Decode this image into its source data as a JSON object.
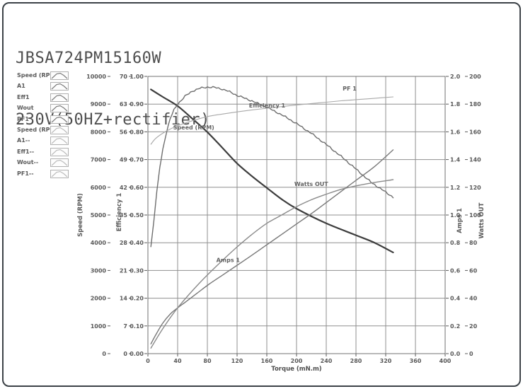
{
  "title": {
    "line1": "JBSA724PM15160W",
    "line2": "230V(50HZ+rectifier)"
  },
  "legend": {
    "items": [
      {
        "label": "Speed (RP",
        "group": "solid"
      },
      {
        "label": "A1",
        "group": "solid"
      },
      {
        "label": "Eff1",
        "group": "solid"
      },
      {
        "label": "Wout",
        "group": "solid"
      },
      {
        "label": "PF1",
        "group": "solid"
      },
      {
        "label": "Speed (RP",
        "group": "ref"
      },
      {
        "label": "A1--",
        "group": "ref"
      },
      {
        "label": "Eff1--",
        "group": "ref"
      },
      {
        "label": "Wout--",
        "group": "ref"
      },
      {
        "label": "PF1--",
        "group": "ref"
      }
    ]
  },
  "colors": {
    "frame": "#3c4247",
    "grid": "#8f8f8f",
    "plot_border": "#707070",
    "tick_text": "#5a5a5a",
    "speed": "#3d3d3d",
    "efficiency": "#6e6e6e",
    "pf": "#a8a8a8",
    "amps": "#787878",
    "watts": "#8a8a8a",
    "legend_solid": "#7d7d7d",
    "legend_ref": "#bdbdbd"
  },
  "chart_data": {
    "type": "line",
    "xlabel": "Torque (mN.m)",
    "x_range": [
      0,
      400
    ],
    "x_ticks": [
      0,
      40,
      80,
      120,
      160,
      200,
      240,
      280,
      320,
      360,
      400
    ],
    "grid": true,
    "axes": [
      {
        "id": "speed",
        "title": "Speed (RPM)",
        "side": "left",
        "range": [
          0,
          10000
        ],
        "ticks": [
          "10000",
          "9000",
          "8000",
          "7000",
          "6000",
          "5000",
          "4000",
          "3000",
          "2000",
          "1000",
          "0"
        ]
      },
      {
        "id": "eff",
        "title": "Efficiency 1",
        "side": "left",
        "range": [
          0,
          70
        ],
        "ticks": [
          "70",
          "63",
          "56",
          "49",
          "42",
          "35",
          "28",
          "21",
          "14",
          "7",
          "0"
        ]
      },
      {
        "id": "pf",
        "title": "",
        "side": "left",
        "range": [
          0,
          1
        ],
        "ticks": [
          "1.00",
          "0.90",
          "0.80",
          "0.70",
          "0.60",
          "0.50",
          "0.40",
          "0.30",
          "0.20",
          "0.10",
          "0.00"
        ]
      },
      {
        "id": "amps",
        "title": "Amps 1",
        "side": "right",
        "range": [
          0,
          2
        ],
        "ticks": [
          "2.0",
          "1.8",
          "1.6",
          "1.4",
          "1.2",
          "1.0",
          "0.8",
          "0.6",
          "0.4",
          "0.2",
          "0.0"
        ]
      },
      {
        "id": "watts",
        "title": "Watts OUT",
        "side": "right",
        "range": [
          0,
          200
        ],
        "ticks": [
          "200",
          "180",
          "160",
          "140",
          "120",
          "100",
          "80",
          "60",
          "40",
          "20",
          "0"
        ]
      }
    ],
    "series": [
      {
        "name": "Speed (RPM)",
        "axis": "speed",
        "color_key": "speed",
        "width": 2.2,
        "noisy": false,
        "points": [
          [
            4,
            9530
          ],
          [
            20,
            9260
          ],
          [
            40,
            8930
          ],
          [
            60,
            8470
          ],
          [
            80,
            7990
          ],
          [
            100,
            7430
          ],
          [
            120,
            6860
          ],
          [
            140,
            6400
          ],
          [
            160,
            5980
          ],
          [
            180,
            5570
          ],
          [
            200,
            5230
          ],
          [
            240,
            4700
          ],
          [
            280,
            4270
          ],
          [
            305,
            4000
          ],
          [
            330,
            3650
          ]
        ]
      },
      {
        "name": "Efficiency 1",
        "axis": "eff",
        "color_key": "efficiency",
        "width": 1.4,
        "noisy": true,
        "points": [
          [
            4,
            27
          ],
          [
            8,
            33.5
          ],
          [
            12,
            41
          ],
          [
            16,
            47
          ],
          [
            20,
            51.5
          ],
          [
            25,
            56
          ],
          [
            30,
            59.3
          ],
          [
            35,
            61.5
          ],
          [
            40,
            63
          ],
          [
            50,
            65
          ],
          [
            60,
            66.3
          ],
          [
            70,
            67
          ],
          [
            80,
            67.3
          ],
          [
            90,
            67.2
          ],
          [
            100,
            66.8
          ],
          [
            110,
            66.1
          ],
          [
            120,
            65.2
          ],
          [
            140,
            63.8
          ],
          [
            160,
            62.2
          ],
          [
            180,
            60.3
          ],
          [
            200,
            58.1
          ],
          [
            220,
            55.6
          ],
          [
            240,
            52.8
          ],
          [
            260,
            49.8
          ],
          [
            280,
            46.6
          ],
          [
            300,
            43.3
          ],
          [
            315,
            41.4
          ],
          [
            330,
            39.5
          ]
        ]
      },
      {
        "name": "PF 1",
        "axis": "pf",
        "color_key": "pf",
        "width": 1.1,
        "noisy": false,
        "points": [
          [
            4,
            0.755
          ],
          [
            10,
            0.775
          ],
          [
            20,
            0.795
          ],
          [
            30,
            0.81
          ],
          [
            40,
            0.822
          ],
          [
            60,
            0.84
          ],
          [
            80,
            0.855
          ],
          [
            100,
            0.864
          ],
          [
            120,
            0.872
          ],
          [
            140,
            0.879
          ],
          [
            160,
            0.885
          ],
          [
            180,
            0.891
          ],
          [
            200,
            0.897
          ],
          [
            220,
            0.902
          ],
          [
            240,
            0.907
          ],
          [
            260,
            0.912
          ],
          [
            280,
            0.916
          ],
          [
            300,
            0.92
          ],
          [
            330,
            0.926
          ]
        ]
      },
      {
        "name": "Amps 1",
        "axis": "amps",
        "color_key": "amps",
        "width": 1.4,
        "noisy": false,
        "points": [
          [
            4,
            0.07
          ],
          [
            10,
            0.13
          ],
          [
            20,
            0.22
          ],
          [
            30,
            0.285
          ],
          [
            40,
            0.33
          ],
          [
            50,
            0.37
          ],
          [
            66,
            0.435
          ],
          [
            82,
            0.5
          ],
          [
            100,
            0.565
          ],
          [
            118,
            0.63
          ],
          [
            140,
            0.71
          ],
          [
            160,
            0.785
          ],
          [
            180,
            0.86
          ],
          [
            200,
            0.935
          ],
          [
            220,
            1.01
          ],
          [
            240,
            1.09
          ],
          [
            260,
            1.17
          ],
          [
            280,
            1.25
          ],
          [
            305,
            1.35
          ],
          [
            330,
            1.47
          ]
        ]
      },
      {
        "name": "Watts OUT",
        "axis": "watts",
        "color_key": "watts",
        "width": 1.4,
        "noisy": false,
        "points": [
          [
            4,
            4
          ],
          [
            20,
            18
          ],
          [
            40,
            33
          ],
          [
            66,
            49
          ],
          [
            90,
            62
          ],
          [
            118,
            76
          ],
          [
            140,
            86
          ],
          [
            160,
            94
          ],
          [
            180,
            100
          ],
          [
            200,
            106
          ],
          [
            220,
            111
          ],
          [
            240,
            115
          ],
          [
            260,
            118.5
          ],
          [
            280,
            121
          ],
          [
            305,
            123.5
          ],
          [
            330,
            125.5
          ]
        ]
      }
    ],
    "curve_labels": [
      {
        "text": "Speed (RPM)",
        "axis": "speed",
        "t": 34,
        "v": 8090
      },
      {
        "text": "Efficiency 1",
        "axis": "eff",
        "t": 136,
        "v": 62.1
      },
      {
        "text": "PF 1",
        "axis": "pf",
        "t": 262,
        "v": 0.949
      },
      {
        "text": "Watts OUT",
        "axis": "watts",
        "t": 197,
        "v": 121
      },
      {
        "text": "Amps 1",
        "axis": "amps",
        "t": 92,
        "v": 0.66
      }
    ]
  }
}
